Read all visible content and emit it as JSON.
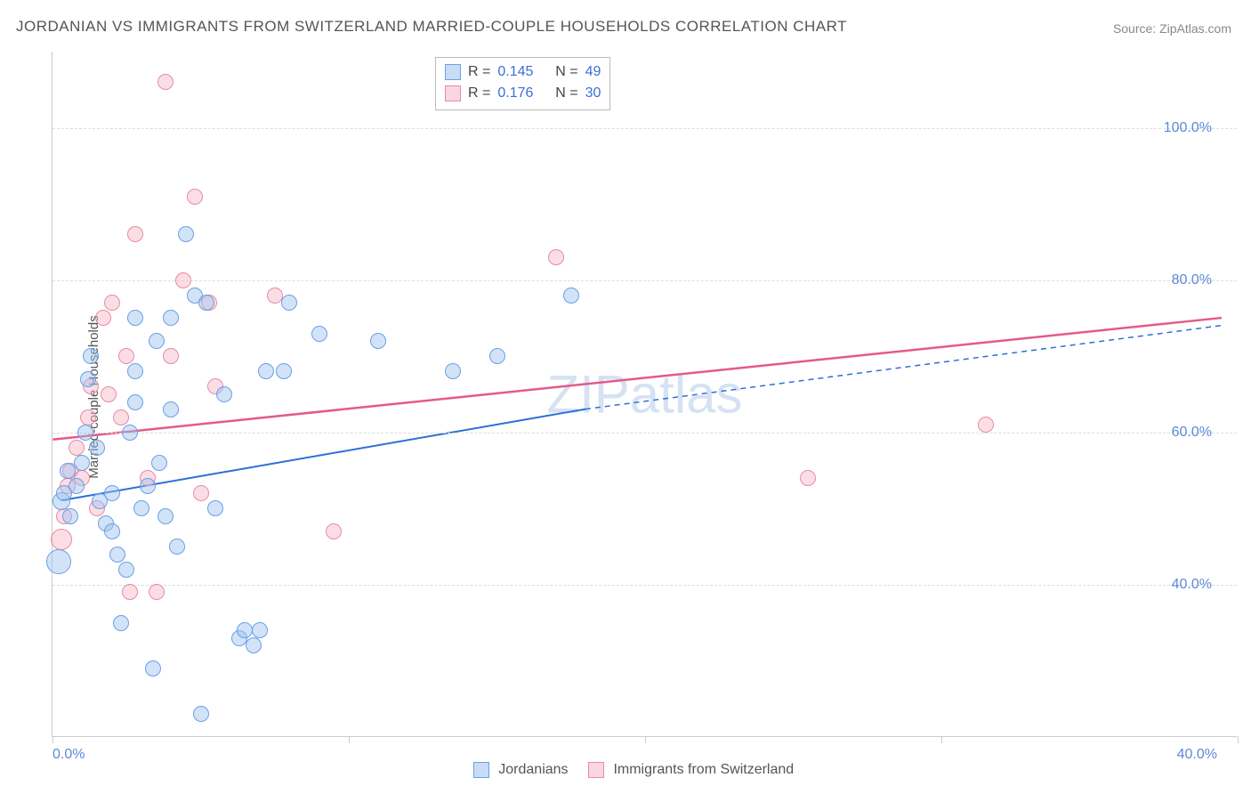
{
  "title": "JORDANIAN VS IMMIGRANTS FROM SWITZERLAND MARRIED-COUPLE HOUSEHOLDS CORRELATION CHART",
  "source": "Source: ZipAtlas.com",
  "ylabel": "Married-couple Households",
  "watermark": "ZIPatlas",
  "legend_bottom": {
    "series1": "Jordanians",
    "series2": "Immigrants from Switzerland"
  },
  "stats": {
    "r_label": "R =",
    "n_label": "N =",
    "blue": {
      "r": "0.145",
      "n": "49"
    },
    "pink": {
      "r": "0.176",
      "n": "30"
    }
  },
  "chart": {
    "type": "scatter",
    "xlim": [
      0,
      40
    ],
    "ylim": [
      20,
      110
    ],
    "xticks": [
      0,
      10,
      20,
      30,
      40
    ],
    "xtick_labels": {
      "0": "0.0%",
      "40": "40.0%"
    },
    "yticks": [
      40,
      60,
      80,
      100
    ],
    "ytick_labels": {
      "40": "40.0%",
      "60": "60.0%",
      "80": "80.0%",
      "100": "100.0%"
    },
    "grid_color": "#dddddd",
    "axis_color": "#cccccc",
    "background": "#ffffff",
    "series": {
      "blue": {
        "color_stroke": "#6a9fe6",
        "color_fill": "rgba(155,192,239,0.45)",
        "trend": {
          "x1": 0.3,
          "y1": 51,
          "x2": 18,
          "y2": 63,
          "x3": 39.5,
          "y3": 74,
          "color": "#2c6fd6",
          "width": 2
        },
        "points": [
          {
            "x": 0.2,
            "y": 43,
            "r": 14
          },
          {
            "x": 0.3,
            "y": 51,
            "r": 10
          },
          {
            "x": 0.4,
            "y": 52,
            "r": 9
          },
          {
            "x": 0.5,
            "y": 55,
            "r": 9
          },
          {
            "x": 0.6,
            "y": 49,
            "r": 9
          },
          {
            "x": 0.8,
            "y": 53,
            "r": 9
          },
          {
            "x": 1.0,
            "y": 56,
            "r": 9
          },
          {
            "x": 1.1,
            "y": 60,
            "r": 9
          },
          {
            "x": 1.2,
            "y": 67,
            "r": 9
          },
          {
            "x": 1.3,
            "y": 70,
            "r": 9
          },
          {
            "x": 1.5,
            "y": 58,
            "r": 9
          },
          {
            "x": 1.6,
            "y": 51,
            "r": 9
          },
          {
            "x": 1.8,
            "y": 48,
            "r": 9
          },
          {
            "x": 2.0,
            "y": 47,
            "r": 9
          },
          {
            "x": 2.0,
            "y": 52,
            "r": 9
          },
          {
            "x": 2.2,
            "y": 44,
            "r": 9
          },
          {
            "x": 2.3,
            "y": 35,
            "r": 9
          },
          {
            "x": 2.5,
            "y": 42,
            "r": 9
          },
          {
            "x": 2.6,
            "y": 60,
            "r": 9
          },
          {
            "x": 2.8,
            "y": 64,
            "r": 9
          },
          {
            "x": 2.8,
            "y": 68,
            "r": 9
          },
          {
            "x": 2.8,
            "y": 75,
            "r": 9
          },
          {
            "x": 3.0,
            "y": 50,
            "r": 9
          },
          {
            "x": 3.2,
            "y": 53,
            "r": 9
          },
          {
            "x": 3.4,
            "y": 29,
            "r": 9
          },
          {
            "x": 3.5,
            "y": 72,
            "r": 9
          },
          {
            "x": 3.6,
            "y": 56,
            "r": 9
          },
          {
            "x": 3.8,
            "y": 49,
            "r": 9
          },
          {
            "x": 4.0,
            "y": 63,
            "r": 9
          },
          {
            "x": 4.0,
            "y": 75,
            "r": 9
          },
          {
            "x": 4.2,
            "y": 45,
            "r": 9
          },
          {
            "x": 4.5,
            "y": 86,
            "r": 9
          },
          {
            "x": 4.8,
            "y": 78,
            "r": 9
          },
          {
            "x": 5.0,
            "y": 23,
            "r": 9
          },
          {
            "x": 5.2,
            "y": 77,
            "r": 9
          },
          {
            "x": 5.5,
            "y": 50,
            "r": 9
          },
          {
            "x": 5.8,
            "y": 65,
            "r": 9
          },
          {
            "x": 6.3,
            "y": 33,
            "r": 9
          },
          {
            "x": 6.5,
            "y": 34,
            "r": 9
          },
          {
            "x": 6.8,
            "y": 32,
            "r": 9
          },
          {
            "x": 7.0,
            "y": 34,
            "r": 9
          },
          {
            "x": 7.2,
            "y": 68,
            "r": 9
          },
          {
            "x": 7.8,
            "y": 68,
            "r": 9
          },
          {
            "x": 8.0,
            "y": 77,
            "r": 9
          },
          {
            "x": 9.0,
            "y": 73,
            "r": 9
          },
          {
            "x": 11.0,
            "y": 72,
            "r": 9
          },
          {
            "x": 13.5,
            "y": 68,
            "r": 9
          },
          {
            "x": 15.0,
            "y": 70,
            "r": 9
          },
          {
            "x": 17.5,
            "y": 78,
            "r": 9
          }
        ]
      },
      "pink": {
        "color_stroke": "#e88aa5",
        "color_fill": "rgba(247,181,198,0.45)",
        "trend": {
          "x1": 0,
          "y1": 59,
          "x2": 39.5,
          "y2": 75,
          "color": "#e55a88",
          "width": 2.5
        },
        "points": [
          {
            "x": 0.3,
            "y": 46,
            "r": 12
          },
          {
            "x": 0.4,
            "y": 49,
            "r": 9
          },
          {
            "x": 0.5,
            "y": 53,
            "r": 9
          },
          {
            "x": 0.6,
            "y": 55,
            "r": 9
          },
          {
            "x": 0.8,
            "y": 58,
            "r": 9
          },
          {
            "x": 1.0,
            "y": 54,
            "r": 9
          },
          {
            "x": 1.2,
            "y": 62,
            "r": 9
          },
          {
            "x": 1.3,
            "y": 66,
            "r": 9
          },
          {
            "x": 1.5,
            "y": 50,
            "r": 9
          },
          {
            "x": 1.7,
            "y": 75,
            "r": 9
          },
          {
            "x": 1.9,
            "y": 65,
            "r": 9
          },
          {
            "x": 2.0,
            "y": 77,
            "r": 9
          },
          {
            "x": 2.3,
            "y": 62,
            "r": 9
          },
          {
            "x": 2.5,
            "y": 70,
            "r": 9
          },
          {
            "x": 2.6,
            "y": 39,
            "r": 9
          },
          {
            "x": 2.8,
            "y": 86,
            "r": 9
          },
          {
            "x": 3.2,
            "y": 54,
            "r": 9
          },
          {
            "x": 3.5,
            "y": 39,
            "r": 9
          },
          {
            "x": 3.8,
            "y": 106,
            "r": 9
          },
          {
            "x": 4.0,
            "y": 70,
            "r": 9
          },
          {
            "x": 4.4,
            "y": 80,
            "r": 9
          },
          {
            "x": 4.8,
            "y": 91,
            "r": 9
          },
          {
            "x": 5.0,
            "y": 52,
            "r": 9
          },
          {
            "x": 5.3,
            "y": 77,
            "r": 9
          },
          {
            "x": 5.5,
            "y": 66,
            "r": 9
          },
          {
            "x": 7.5,
            "y": 78,
            "r": 9
          },
          {
            "x": 9.5,
            "y": 47,
            "r": 9
          },
          {
            "x": 17.0,
            "y": 83,
            "r": 9
          },
          {
            "x": 25.5,
            "y": 54,
            "r": 9
          },
          {
            "x": 31.5,
            "y": 61,
            "r": 9
          }
        ]
      }
    }
  }
}
